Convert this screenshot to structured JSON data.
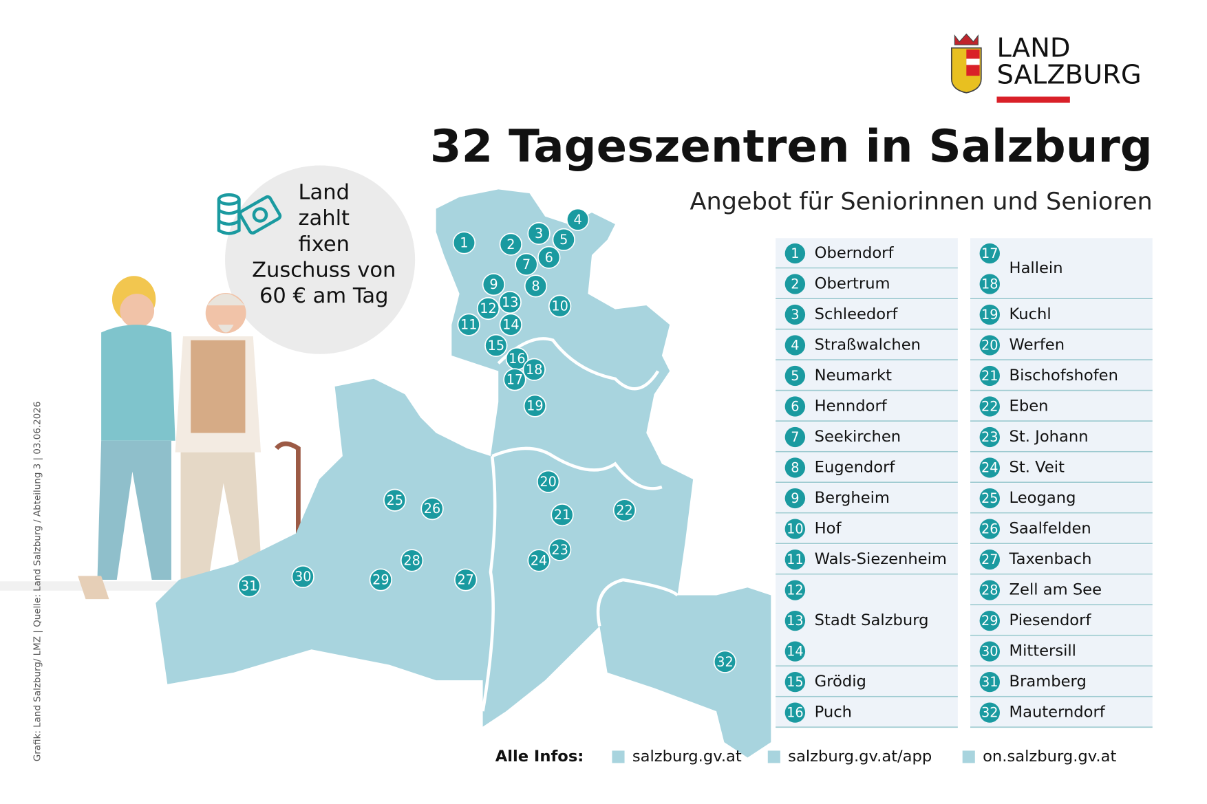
{
  "logo": {
    "line1": "LAND",
    "line2": "SALZBURG"
  },
  "header": {
    "title": "32 Tageszentren in Salzburg",
    "subtitle": "Angebot für Seniorinnen und Senioren"
  },
  "bubble": {
    "lines": [
      "Land",
      "zahlt",
      "fixen",
      "Zuschuss von",
      "60 € am Tag"
    ]
  },
  "map": {
    "markers": [
      "1",
      "2",
      "3",
      "4",
      "5",
      "6",
      "7",
      "8",
      "9",
      "10",
      "11",
      "12",
      "13",
      "14",
      "15",
      "16",
      "17",
      "18",
      "19",
      "20",
      "21",
      "22",
      "23",
      "24",
      "25",
      "26",
      "27",
      "28",
      "29",
      "30",
      "31",
      "32"
    ]
  },
  "list": [
    {
      "numbers": [
        "1"
      ],
      "name": "Oberndorf"
    },
    {
      "numbers": [
        "2"
      ],
      "name": "Obertrum"
    },
    {
      "numbers": [
        "3"
      ],
      "name": "Schleedorf"
    },
    {
      "numbers": [
        "4"
      ],
      "name": "Straßwalchen"
    },
    {
      "numbers": [
        "5"
      ],
      "name": "Neumarkt"
    },
    {
      "numbers": [
        "6"
      ],
      "name": "Henndorf"
    },
    {
      "numbers": [
        "7"
      ],
      "name": "Seekirchen"
    },
    {
      "numbers": [
        "8"
      ],
      "name": "Eugendorf"
    },
    {
      "numbers": [
        "9"
      ],
      "name": "Bergheim"
    },
    {
      "numbers": [
        "10"
      ],
      "name": "Hof"
    },
    {
      "numbers": [
        "11"
      ],
      "name": "Wals-Siezenheim"
    },
    {
      "numbers": [
        "12",
        "13",
        "14"
      ],
      "name": "Stadt Salzburg"
    },
    {
      "numbers": [
        "15"
      ],
      "name": "Grödig"
    },
    {
      "numbers": [
        "16"
      ],
      "name": "Puch"
    },
    {
      "numbers": [
        "17",
        "18"
      ],
      "name": "Hallein"
    },
    {
      "numbers": [
        "19"
      ],
      "name": "Kuchl"
    },
    {
      "numbers": [
        "20"
      ],
      "name": "Werfen"
    },
    {
      "numbers": [
        "21"
      ],
      "name": "Bischofshofen"
    },
    {
      "numbers": [
        "22"
      ],
      "name": "Eben"
    },
    {
      "numbers": [
        "23"
      ],
      "name": "St. Johann"
    },
    {
      "numbers": [
        "24"
      ],
      "name": "St. Veit"
    },
    {
      "numbers": [
        "25"
      ],
      "name": "Leogang"
    },
    {
      "numbers": [
        "26"
      ],
      "name": "Saalfelden"
    },
    {
      "numbers": [
        "27"
      ],
      "name": "Taxenbach"
    },
    {
      "numbers": [
        "28"
      ],
      "name": "Zell am See"
    },
    {
      "numbers": [
        "29"
      ],
      "name": "Piesendorf"
    },
    {
      "numbers": [
        "30"
      ],
      "name": "Mittersill"
    },
    {
      "numbers": [
        "31"
      ],
      "name": "Bramberg"
    },
    {
      "numbers": [
        "32"
      ],
      "name": "Mauterndorf"
    }
  ],
  "footer": {
    "label": "Alle Infos:",
    "links": [
      "salzburg.gv.at",
      "salzburg.gv.at/app",
      "on.salzburg.gv.at"
    ]
  },
  "credit": "Grafik: Land Salzburg/ LMZ | Quelle: Land Salzburg / Abteilung 3 | 03.06.2026"
}
